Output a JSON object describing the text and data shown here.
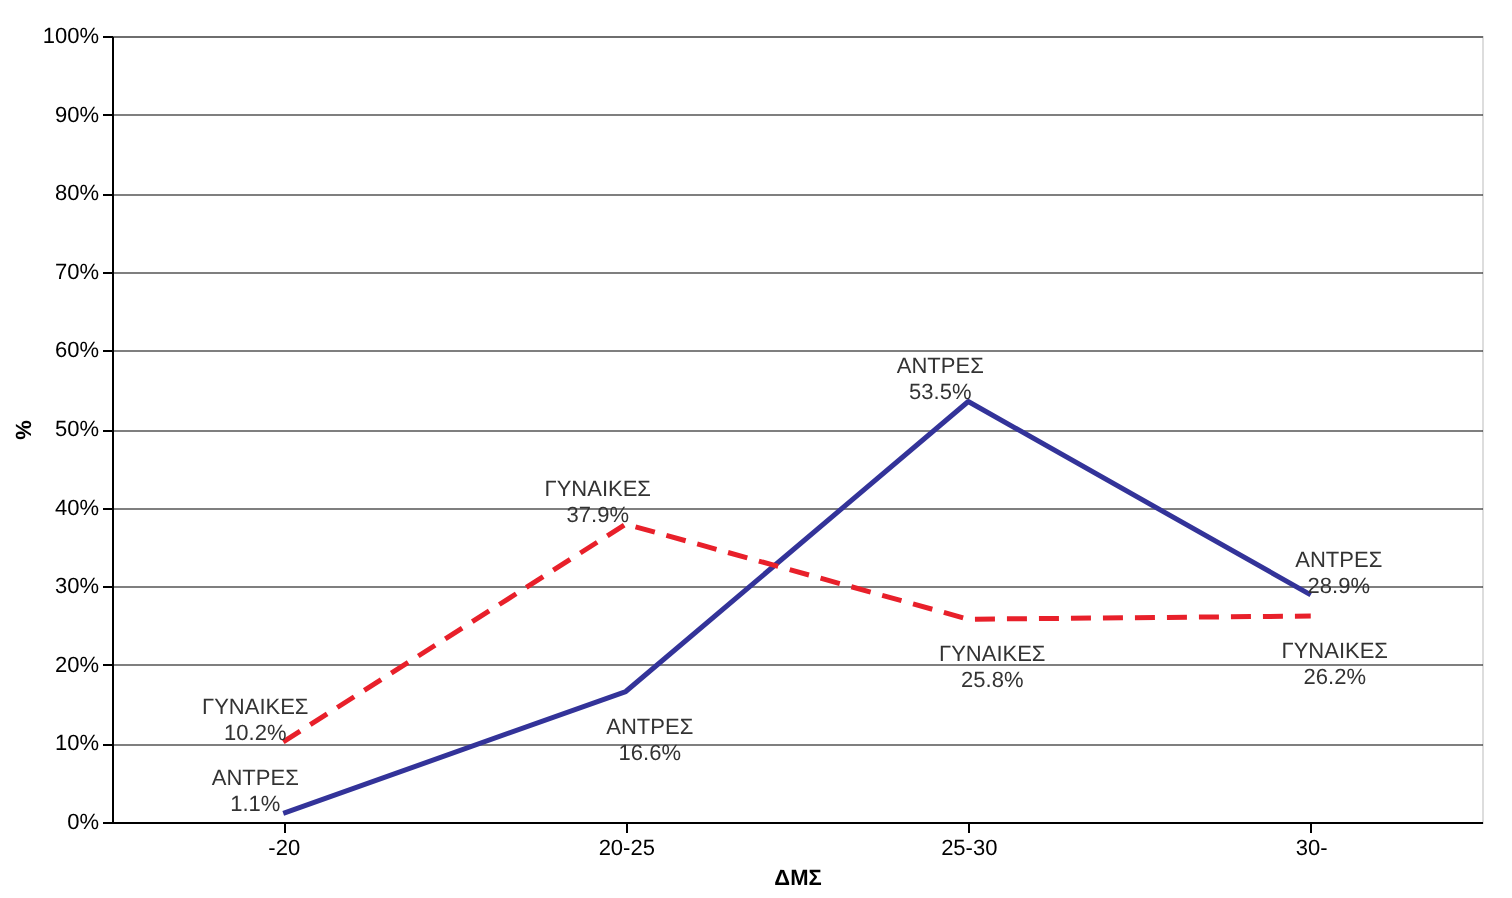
{
  "chart_data": {
    "type": "line",
    "xlabel": "ΔΜΣ",
    "ylabel": "%",
    "categories": [
      "-20",
      "20-25",
      "25-30",
      "30-"
    ],
    "series": [
      {
        "name": "ΑΝΤΡΕΣ",
        "color": "#333399",
        "line_style": "solid",
        "values": [
          1.1,
          16.6,
          53.5,
          28.9
        ],
        "value_labels": [
          "1.1%",
          "16.6%",
          "53.5%",
          "28.9%"
        ]
      },
      {
        "name": "ΓΥΝΑΙΚΕΣ",
        "color": "#e8202a",
        "line_style": "dashed",
        "values": [
          10.2,
          37.9,
          25.8,
          26.2
        ],
        "value_labels": [
          "10.2%",
          "37.9%",
          "25.8%",
          "26.2%"
        ]
      }
    ],
    "ylim": [
      0,
      100
    ],
    "yticks": [
      {
        "value": 0,
        "label": "0%"
      },
      {
        "value": 10,
        "label": "10%"
      },
      {
        "value": 20,
        "label": "20%"
      },
      {
        "value": 30,
        "label": "30%"
      },
      {
        "value": 40,
        "label": "40%"
      },
      {
        "value": 50,
        "label": "50%"
      },
      {
        "value": 60,
        "label": "60%"
      },
      {
        "value": 70,
        "label": "70%"
      },
      {
        "value": 80,
        "label": "80%"
      },
      {
        "value": 90,
        "label": "90%"
      },
      {
        "value": 100,
        "label": "100%"
      }
    ],
    "grid": "y",
    "legend": false,
    "marker": "none"
  }
}
